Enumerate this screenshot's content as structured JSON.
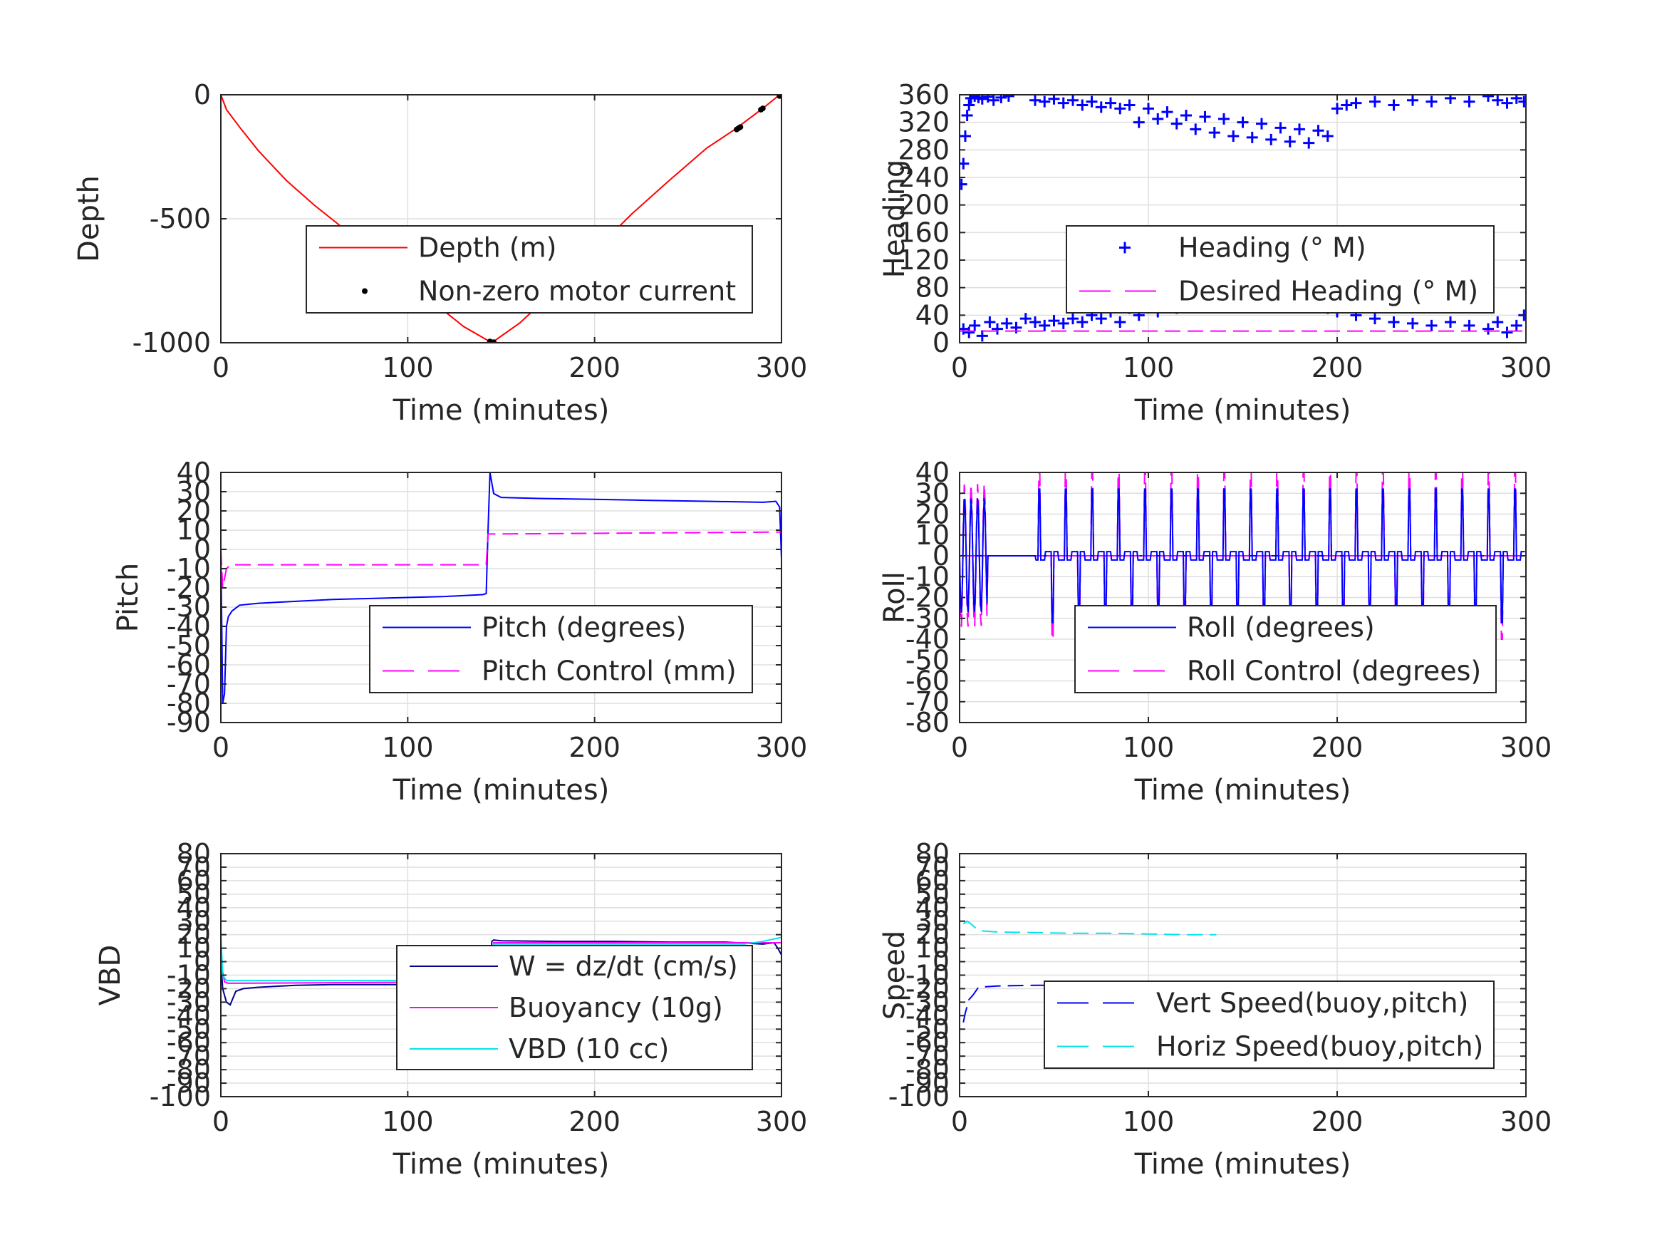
{
  "chart_data": [
    {
      "type": "line",
      "xlabel": "Time (minutes)",
      "ylabel": "Depth",
      "xlim": [
        0,
        300
      ],
      "ylim": [
        -1000,
        0
      ],
      "xticks": [
        0,
        100,
        200,
        300
      ],
      "yticks": [
        -1000,
        -500,
        0
      ],
      "ytick_labels": [
        "-1000",
        "-500",
        "0"
      ],
      "grid": true,
      "legend_location": "lower-right",
      "series": [
        {
          "name": "Depth (m)",
          "style": "line",
          "color": "#ff0000",
          "x": [
            0,
            3,
            10,
            20,
            35,
            50,
            70,
            90,
            110,
            130,
            145,
            160,
            180,
            200,
            220,
            240,
            260,
            275,
            290,
            299
          ],
          "y": [
            0,
            -60,
            -130,
            -225,
            -345,
            -445,
            -565,
            -695,
            -815,
            -935,
            -1000,
            -920,
            -780,
            -630,
            -480,
            -345,
            -215,
            -140,
            -55,
            0
          ]
        },
        {
          "name": "Non-zero motor current",
          "style": "points",
          "color": "#000000",
          "x": [
            144,
            145,
            146,
            276,
            277,
            278,
            289,
            290,
            299
          ],
          "y": [
            -995,
            -1000,
            -998,
            -140,
            -135,
            -130,
            -60,
            -55,
            -5
          ]
        }
      ]
    },
    {
      "type": "scatter",
      "xlabel": "Time (minutes)",
      "ylabel": "Heading",
      "xlim": [
        0,
        300
      ],
      "ylim": [
        0,
        360
      ],
      "xticks": [
        0,
        100,
        200,
        300
      ],
      "yticks": [
        0,
        40,
        80,
        120,
        160,
        200,
        240,
        280,
        320,
        360
      ],
      "grid": true,
      "legend_location": "center-right",
      "series": [
        {
          "name": "Heading (° M)",
          "style": "plus",
          "color": "#0000ff",
          "x": [
            1,
            2,
            3,
            4,
            5,
            6,
            8,
            10,
            12,
            15,
            18,
            22,
            26,
            40,
            45,
            50,
            55,
            60,
            65,
            70,
            75,
            80,
            85,
            90,
            95,
            100,
            105,
            110,
            115,
            120,
            125,
            130,
            135,
            140,
            145,
            150,
            155,
            160,
            165,
            170,
            175,
            180,
            185,
            190,
            195,
            200,
            205,
            210,
            220,
            230,
            240,
            250,
            260,
            270,
            280,
            285,
            290,
            295,
            299,
            2,
            5,
            8,
            12,
            16,
            20,
            25,
            30,
            35,
            40,
            45,
            50,
            55,
            60,
            65,
            70,
            75,
            80,
            85,
            90,
            95,
            100,
            105,
            110,
            115,
            120,
            125,
            130,
            135,
            140,
            145,
            150,
            155,
            160,
            165,
            170,
            175,
            180,
            185,
            190,
            195,
            200,
            210,
            220,
            230,
            240,
            250,
            260,
            270,
            280,
            285,
            290,
            295,
            299
          ],
          "y": [
            230,
            260,
            300,
            330,
            345,
            355,
            358,
            356,
            354,
            357,
            352,
            356,
            358,
            352,
            350,
            354,
            348,
            352,
            345,
            350,
            342,
            348,
            340,
            345,
            320,
            340,
            325,
            335,
            318,
            330,
            310,
            328,
            305,
            325,
            300,
            320,
            298,
            318,
            295,
            312,
            292,
            310,
            290,
            308,
            300,
            340,
            345,
            348,
            350,
            345,
            352,
            350,
            355,
            350,
            358,
            352,
            348,
            355,
            350,
            20,
            15,
            25,
            10,
            30,
            20,
            28,
            22,
            35,
            30,
            25,
            32,
            28,
            35,
            30,
            40,
            35,
            45,
            30,
            50,
            40,
            55,
            45,
            60,
            50,
            65,
            55,
            70,
            60,
            75,
            65,
            80,
            70,
            85,
            75,
            80,
            60,
            75,
            55,
            70,
            50,
            45,
            40,
            35,
            30,
            28,
            25,
            30,
            25,
            20,
            30,
            15,
            25,
            40
          ]
        },
        {
          "name": "Desired Heading (° M)",
          "style": "dash",
          "color": "#ff00ff",
          "x": [
            0,
            300
          ],
          "y": [
            17,
            17
          ]
        }
      ]
    },
    {
      "type": "line",
      "xlabel": "Time (minutes)",
      "ylabel": "Pitch",
      "xlim": [
        0,
        300
      ],
      "ylim": [
        -90,
        40
      ],
      "xticks": [
        0,
        100,
        200,
        300
      ],
      "yticks": [
        -90,
        -80,
        -70,
        -60,
        -50,
        -40,
        -30,
        -20,
        -10,
        0,
        10,
        20,
        30,
        40
      ],
      "grid": true,
      "legend_location": "lower-right",
      "series": [
        {
          "name": "Pitch (degrees)",
          "style": "line",
          "color": "#0000ff",
          "x": [
            0,
            1,
            2,
            3,
            4,
            6,
            10,
            20,
            40,
            60,
            80,
            100,
            120,
            140,
            142,
            143,
            144,
            146,
            150,
            170,
            200,
            230,
            260,
            290,
            297,
            299,
            300
          ],
          "y": [
            0,
            -80,
            -75,
            -40,
            -35,
            -32,
            -29,
            -28,
            -27,
            -26,
            -25.5,
            -25,
            -24.5,
            -23.5,
            -23,
            10,
            40,
            29,
            27,
            26.5,
            26,
            25.5,
            25,
            24.5,
            25,
            22,
            -5
          ]
        },
        {
          "name": "Pitch Control (mm)",
          "style": "dash",
          "color": "#ff00ff",
          "x": [
            0,
            1,
            3,
            5,
            142,
            143,
            145,
            299,
            300
          ],
          "y": [
            0,
            -20,
            -10,
            -8,
            -8,
            8,
            8,
            9,
            9
          ]
        }
      ]
    },
    {
      "type": "line",
      "xlabel": "Time (minutes)",
      "ylabel": "Roll",
      "xlim": [
        0,
        300
      ],
      "ylim": [
        -80,
        40
      ],
      "xticks": [
        0,
        100,
        200,
        300
      ],
      "yticks": [
        -80,
        -70,
        -60,
        -50,
        -40,
        -30,
        -20,
        -10,
        0,
        10,
        20,
        30,
        40
      ],
      "grid": true,
      "legend_location": "lower-right",
      "series": [
        {
          "name": "Roll (degrees)",
          "style": "line",
          "color": "#0000ff",
          "description_values_only": true,
          "x": [
            0,
            300
          ],
          "y": [
            0,
            0
          ]
        },
        {
          "name": "Roll Control (degrees)",
          "style": "dash",
          "color": "#ff00ff",
          "x": [
            0,
            300
          ],
          "y": [
            0,
            0
          ]
        }
      ]
    },
    {
      "type": "line",
      "xlabel": "Time (minutes)",
      "ylabel": "VBD",
      "xlim": [
        0,
        300
      ],
      "ylim": [
        -100,
        80
      ],
      "xticks": [
        0,
        100,
        200,
        300
      ],
      "yticks": [
        -100,
        -90,
        -80,
        -70,
        -60,
        -50,
        -40,
        -30,
        -20,
        -10,
        0,
        10,
        20,
        30,
        40,
        50,
        60,
        70,
        80
      ],
      "grid": true,
      "legend_location": "lower-right",
      "series": [
        {
          "name": "W = dz/dt (cm/s)",
          "style": "line",
          "color": "#00008b",
          "x": [
            0,
            1,
            2,
            3,
            5,
            8,
            12,
            20,
            40,
            60,
            80,
            100,
            120,
            140,
            144,
            145,
            146,
            150,
            180,
            210,
            240,
            270,
            290,
            296,
            298,
            300
          ],
          "y": [
            0,
            -20,
            -25,
            -30,
            -32,
            -22,
            -20,
            -19,
            -17.5,
            -17,
            -17,
            -17,
            -17,
            -16,
            -16,
            15,
            16,
            15.5,
            15,
            15,
            14.5,
            14.5,
            13,
            14,
            10,
            5
          ]
        },
        {
          "name": "Buoyancy (10g)",
          "style": "line",
          "color": "#ff00ff",
          "x": [
            0,
            2,
            4,
            145,
            146,
            300
          ],
          "y": [
            0,
            -15,
            -16,
            -15,
            14,
            14
          ]
        },
        {
          "name": "VBD (10 cc)",
          "style": "line",
          "color": "#00e5ee",
          "x": [
            0,
            1,
            3,
            5,
            145,
            146,
            280,
            290,
            300
          ],
          "y": [
            20,
            -10,
            -14,
            -14,
            -14,
            13,
            13,
            15,
            18
          ]
        }
      ]
    },
    {
      "type": "line",
      "xlabel": "Time (minutes)",
      "ylabel": "Speed",
      "xlim": [
        0,
        300
      ],
      "ylim": [
        -100,
        80
      ],
      "xticks": [
        0,
        100,
        200,
        300
      ],
      "yticks": [
        -100,
        -90,
        -80,
        -70,
        -60,
        -50,
        -40,
        -30,
        -20,
        -10,
        0,
        10,
        20,
        30,
        40,
        50,
        60,
        70,
        80
      ],
      "grid": true,
      "legend_location": "lower-right",
      "series": [
        {
          "name": "Vert Speed(buoy,pitch)",
          "style": "dash",
          "color": "#0000ff",
          "x": [
            2,
            3,
            5,
            7,
            10,
            20,
            40,
            60,
            80,
            100,
            120,
            136
          ],
          "y": [
            -45,
            -38,
            -28,
            -25,
            -19,
            -18,
            -17.5,
            -17.5,
            -17.5,
            -17,
            -17,
            -16.5
          ]
        },
        {
          "name": "Horiz Speed(buoy,pitch)",
          "style": "dash",
          "color": "#00e5ee",
          "x": [
            2,
            4,
            6,
            10,
            20,
            40,
            60,
            80,
            100,
            120,
            136
          ],
          "y": [
            28,
            30,
            28,
            23,
            22,
            21.5,
            21,
            21,
            20.5,
            20,
            20
          ]
        }
      ]
    }
  ]
}
